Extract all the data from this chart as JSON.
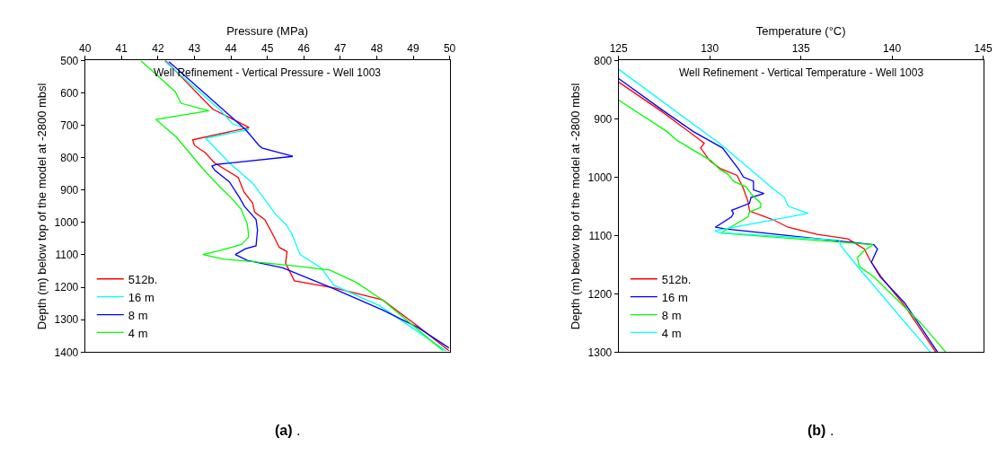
{
  "chart_data": [
    {
      "type": "line",
      "xlabel": "Pressure (MPa)",
      "ylabel": "Depth (m) below top of the model at -2800 mbsl",
      "annotations": [
        "Well Refinement - Vertical Pressure - Well 1003",
        "(a) ."
      ],
      "xlim": [
        40,
        50
      ],
      "xticks": [
        40,
        41,
        42,
        43,
        44,
        45,
        46,
        47,
        48,
        49,
        50
      ],
      "ylim": [
        1400,
        500
      ],
      "yticks": [
        500,
        600,
        700,
        800,
        900,
        1000,
        1100,
        1200,
        1300,
        1400
      ],
      "legend": "bottom left",
      "marker": "none",
      "line_style": "solid",
      "series": [
        {
          "name": "512b.",
          "color": "#ff0000",
          "x": [
            42.2,
            43.5,
            44.5,
            42.95,
            43.0,
            43.3,
            43.55,
            44.2,
            44.36,
            44.6,
            44.65,
            44.93,
            45.17,
            45.33,
            45.54,
            45.5,
            45.74,
            46.87,
            48.16,
            49.13,
            49.98
          ],
          "values": [
            500,
            650,
            707,
            745,
            762,
            785,
            816,
            861,
            906,
            941,
            968,
            991,
            1041,
            1077,
            1090,
            1126,
            1180,
            1203,
            1239,
            1320,
            1396
          ]
        },
        {
          "name": "16 m",
          "color": "#00ffff",
          "x": [
            42.18,
            43.72,
            44.04,
            44.49,
            43.31,
            43.96,
            44.6,
            45.25,
            45.5,
            45.66,
            45.9,
            46.47,
            46.83,
            48.08,
            49.9
          ],
          "values": [
            502,
            655,
            695,
            713,
            740,
            816,
            879,
            978,
            1005,
            1032,
            1099,
            1140,
            1194,
            1257,
            1396
          ]
        },
        {
          "name": "8 m",
          "color": "#0000ff",
          "x": [
            42.3,
            44.4,
            44.77,
            44.85,
            45.7,
            43.6,
            43.48,
            43.56,
            43.96,
            44.24,
            44.37,
            44.69,
            44.73,
            44.69,
            44.4,
            44.12,
            44.45,
            45.42,
            46.79,
            48.16,
            49.13,
            49.98
          ],
          "values": [
            504,
            713,
            762,
            770,
            796,
            821,
            826,
            839,
            875,
            924,
            950,
            991,
            1023,
            1072,
            1081,
            1099,
            1117,
            1140,
            1203,
            1270,
            1324,
            1387
          ]
        },
        {
          "name": "4 m",
          "color": "#00ff00",
          "x": [
            41.54,
            42.47,
            42.63,
            43.4,
            41.94,
            42.5,
            43.23,
            43.68,
            44.0,
            44.28,
            44.45,
            44.49,
            44.29,
            43.72,
            43.23,
            43.8,
            44.69,
            45.82,
            46.71,
            47.44,
            48.16,
            49.82
          ],
          "values": [
            502,
            596,
            632,
            655,
            682,
            736,
            834,
            888,
            923,
            959,
            1005,
            1045,
            1068,
            1086,
            1099,
            1113,
            1122,
            1135,
            1147,
            1185,
            1239,
            1396
          ]
        }
      ]
    },
    {
      "type": "line",
      "xlabel": "Temperature (°C)",
      "ylabel": "Depth (m) below top of the model at -2800 mbsl",
      "annotations": [
        "Well Refinement - Vertical Temperature - Well 1003",
        "(b) ."
      ],
      "xlim": [
        125,
        145
      ],
      "xticks": [
        125,
        130,
        135,
        140,
        145
      ],
      "ylim": [
        1300,
        800
      ],
      "yticks": [
        800,
        900,
        1000,
        1100,
        1200,
        1300
      ],
      "legend": "bottom left",
      "marker": "none",
      "line_style": "solid",
      "series": [
        {
          "name": "512b.",
          "color": "#ff0000",
          "x": [
            125,
            127.34,
            129.5,
            129.7,
            129.5,
            130,
            130.56,
            131.5,
            131.85,
            132.1,
            132.18,
            133.47,
            134.3,
            135.9,
            137.58,
            138.47,
            138.8,
            139.4,
            140.7,
            142.4
          ],
          "values": [
            837,
            887,
            937,
            942,
            950,
            972,
            985,
            997,
            1020,
            1042,
            1058,
            1073,
            1086,
            1098,
            1106,
            1123,
            1143,
            1171,
            1221,
            1300
          ]
        },
        {
          "name": "16 m",
          "color": "#0000ff",
          "x": [
            125,
            127.4,
            129.1,
            130.7,
            131.6,
            131.85,
            132.4,
            132.4,
            132.98,
            132.26,
            132.18,
            131.2,
            131.3,
            131.2,
            130.3,
            130.9,
            139.0,
            139.2,
            138.87,
            139.35,
            140.7,
            142.5
          ],
          "values": [
            831,
            885,
            922,
            950,
            987,
            1000,
            1007,
            1022,
            1028,
            1035,
            1045,
            1057,
            1062,
            1068,
            1086,
            1089,
            1116,
            1123,
            1146,
            1171,
            1216,
            1300
          ]
        },
        {
          "name": "8 m",
          "color": "#00ff00",
          "x": [
            125,
            127.66,
            128.2,
            130.08,
            130.56,
            131.0,
            131.3,
            132.0,
            132.3,
            132.8,
            132.8,
            132.18,
            132.1,
            131.4,
            130.6,
            138.95,
            138.47,
            138.1,
            138.2,
            139.0,
            141.6,
            142.95
          ],
          "values": [
            868,
            922,
            937,
            972,
            987,
            995,
            1007,
            1017,
            1030,
            1045,
            1052,
            1060,
            1068,
            1081,
            1096,
            1116,
            1126,
            1138,
            1153,
            1171,
            1251,
            1300
          ]
        },
        {
          "name": "4 m",
          "color": "#00ffff",
          "x": [
            125,
            130.65,
            133.47,
            134.1,
            134.3,
            135.4,
            130.3,
            130.5,
            137.1,
            137.2,
            138.1,
            142.1
          ],
          "values": [
            815,
            945,
            1020,
            1035,
            1050,
            1062,
            1092,
            1095,
            1108,
            1118,
            1153,
            1300
          ]
        }
      ]
    }
  ]
}
